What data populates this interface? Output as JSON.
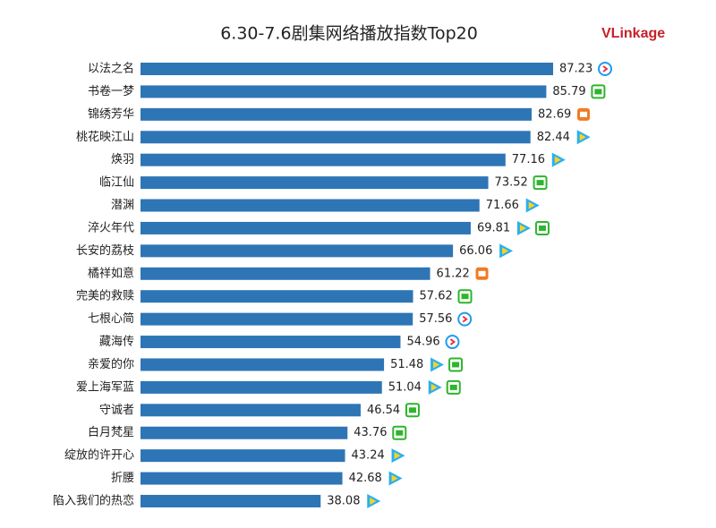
{
  "chart_data": {
    "type": "bar",
    "orientation": "horizontal",
    "title": "6.30-7.6剧集网络播放指数Top20",
    "logo": "VLinkage",
    "color": "#2e75b6",
    "categories": [
      "以法之名",
      "书卷一梦",
      "锦绣芳华",
      "桃花映江山",
      "焕羽",
      "临江仙",
      "潜渊",
      "淬火年代",
      "长安的荔枝",
      "橘祥如意",
      "完美的救赎",
      "七根心简",
      "藏海传",
      "亲爱的你",
      "爱上海军蓝",
      "守诚者",
      "白月梵星",
      "绽放的许开心",
      "折腰",
      "陷入我们的热恋"
    ],
    "values": [
      87.23,
      85.79,
      82.69,
      82.44,
      77.16,
      73.52,
      71.66,
      69.81,
      66.06,
      61.22,
      57.62,
      57.56,
      54.96,
      51.48,
      51.04,
      46.54,
      43.76,
      43.24,
      42.68,
      38.08
    ]
  }
}
